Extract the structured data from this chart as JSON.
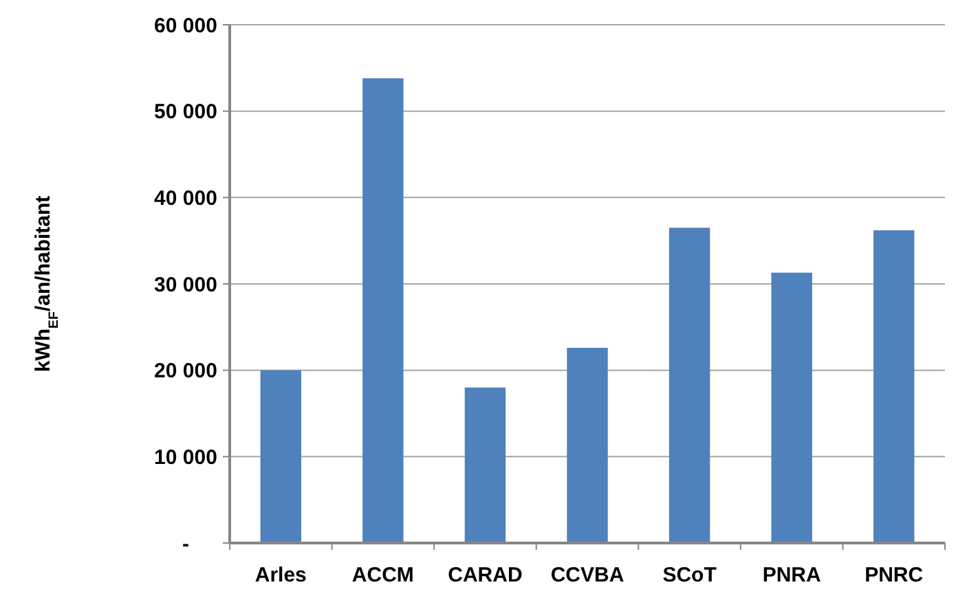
{
  "chart_data": {
    "type": "bar",
    "ylabel": "kWh$_{EF}$/an/habitant",
    "categories": [
      "Arles",
      "ACCM",
      "CARAD",
      "CCVBA",
      "SCoT",
      "PNRA",
      "PNRC"
    ],
    "values": [
      20000,
      53800,
      18000,
      22600,
      36500,
      31300,
      36200
    ],
    "color": "#4f81bd",
    "ylim": [
      0,
      60000
    ],
    "yticks": [
      {
        "value": 0,
        "label": "-"
      },
      {
        "value": 10000,
        "label": "10 000"
      },
      {
        "value": 20000,
        "label": "20 000"
      },
      {
        "value": 30000,
        "label": "30 000"
      },
      {
        "value": 40000,
        "label": "40 000"
      },
      {
        "value": 50000,
        "label": "50 000"
      },
      {
        "value": 60000,
        "label": "60 000"
      }
    ],
    "grid": "y"
  }
}
